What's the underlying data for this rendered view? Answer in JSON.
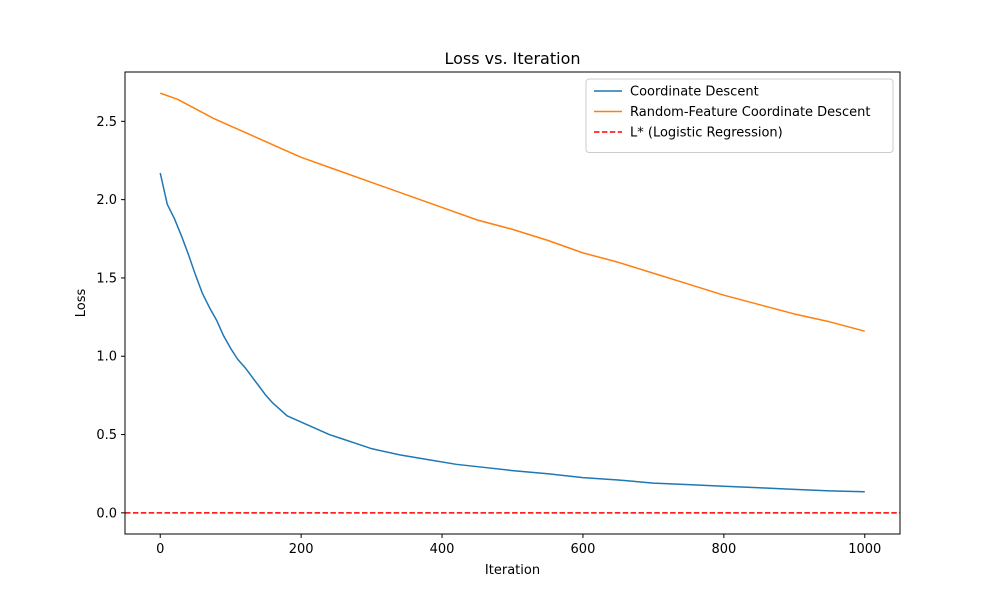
{
  "chart_data": {
    "type": "line",
    "title": "Loss vs. Iteration",
    "xlabel": "Iteration",
    "ylabel": "Loss",
    "xlim": [
      -50,
      1050
    ],
    "ylim": [
      -0.135,
      2.815
    ],
    "x_ticks": [
      0,
      200,
      400,
      600,
      800,
      1000
    ],
    "y_ticks": [
      0.0,
      0.5,
      1.0,
      1.5,
      2.0,
      2.5
    ],
    "x_tick_labels": [
      "0",
      "200",
      "400",
      "600",
      "800",
      "1000"
    ],
    "y_tick_labels": [
      "0.0",
      "0.5",
      "1.0",
      "1.5",
      "2.0",
      "2.5"
    ],
    "grid": false,
    "legend_position": "top-right",
    "series": [
      {
        "name": "Coordinate Descent",
        "color": "#1f77b4",
        "style": "solid",
        "x": [
          0,
          10,
          20,
          30,
          40,
          50,
          60,
          70,
          80,
          90,
          100,
          110,
          120,
          130,
          140,
          150,
          160,
          170,
          180,
          200,
          220,
          240,
          260,
          280,
          300,
          340,
          380,
          420,
          460,
          500,
          550,
          600,
          650,
          700,
          750,
          800,
          850,
          900,
          950,
          1000
        ],
        "y": [
          2.17,
          1.97,
          1.88,
          1.77,
          1.65,
          1.52,
          1.4,
          1.31,
          1.23,
          1.13,
          1.05,
          0.98,
          0.93,
          0.87,
          0.81,
          0.75,
          0.7,
          0.66,
          0.62,
          0.58,
          0.54,
          0.5,
          0.47,
          0.44,
          0.41,
          0.37,
          0.34,
          0.31,
          0.29,
          0.27,
          0.25,
          0.225,
          0.21,
          0.19,
          0.18,
          0.17,
          0.16,
          0.15,
          0.14,
          0.135
        ]
      },
      {
        "name": "Random-Feature Coordinate Descent",
        "color": "#ff7f0e",
        "style": "solid",
        "x": [
          0,
          25,
          50,
          75,
          100,
          125,
          150,
          175,
          200,
          250,
          300,
          350,
          400,
          450,
          500,
          550,
          600,
          650,
          700,
          750,
          800,
          850,
          900,
          950,
          1000
        ],
        "y": [
          2.68,
          2.64,
          2.58,
          2.52,
          2.47,
          2.42,
          2.37,
          2.32,
          2.27,
          2.19,
          2.11,
          2.03,
          1.95,
          1.87,
          1.81,
          1.74,
          1.66,
          1.6,
          1.53,
          1.46,
          1.39,
          1.33,
          1.27,
          1.22,
          1.16
        ]
      }
    ],
    "reference_lines": [
      {
        "name": "L* (Logistic Regression)",
        "orientation": "horizontal",
        "y": 0.0,
        "color": "#ff0000",
        "style": "dashed"
      }
    ]
  }
}
